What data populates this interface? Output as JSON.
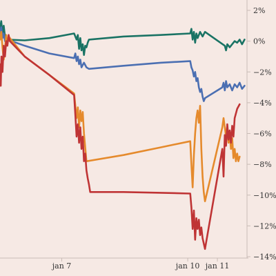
{
  "chart_data": {
    "type": "line",
    "title": "",
    "xlabel": "",
    "ylabel": "",
    "y_unit": "%",
    "y_axis_side": "right",
    "ylim": [
      -14,
      2
    ],
    "yticks": [
      2,
      0,
      -2,
      -4,
      -6,
      -8,
      -10,
      -12,
      -14
    ],
    "ytick_labels": [
      "2%",
      "0%",
      "−2%",
      "−4%",
      "−6%",
      "−8%",
      "−10%",
      "−12%",
      "−14%"
    ],
    "xlim": [
      0,
      100
    ],
    "xticks": [
      {
        "x": 25,
        "label": "jan 7"
      },
      {
        "x": 76,
        "label": "jan 10"
      },
      {
        "x": 88,
        "label": "jan 11"
      }
    ],
    "grid": "none",
    "background": "#f6e9e4",
    "series": [
      {
        "color": "#1a7364",
        "points": [
          [
            0,
            0.8
          ],
          [
            0.5,
            1.3
          ],
          [
            1,
            0.5
          ],
          [
            1.5,
            1.0
          ],
          [
            2,
            0.3
          ],
          [
            3,
            0.1
          ],
          [
            10,
            0.05
          ],
          [
            20,
            0.2
          ],
          [
            30,
            0.5
          ],
          [
            31,
            0.1
          ],
          [
            31.5,
            0.4
          ],
          [
            32,
            -0.5
          ],
          [
            32.5,
            0.2
          ],
          [
            33,
            -0.6
          ],
          [
            33.5,
            -0.2
          ],
          [
            34,
            -0.9
          ],
          [
            34.5,
            -0.3
          ],
          [
            35,
            -0.4
          ],
          [
            35.5,
            -0.1
          ],
          [
            36,
            0.1
          ],
          [
            50,
            0.3
          ],
          [
            65,
            0.4
          ],
          [
            77,
            0.5
          ],
          [
            77.5,
            0.8
          ],
          [
            78,
            0.1
          ],
          [
            78.5,
            0.6
          ],
          [
            79,
            -0.1
          ],
          [
            79.5,
            0.5
          ],
          [
            80,
            0.2
          ],
          [
            81,
            0.6
          ],
          [
            82,
            0.3
          ],
          [
            83,
            0.6
          ],
          [
            91,
            -0.3
          ],
          [
            91.5,
            -0.6
          ],
          [
            92,
            -0.2
          ],
          [
            93,
            -0.4
          ],
          [
            94,
            -0.2
          ],
          [
            95,
            0.0
          ],
          [
            96,
            -0.1
          ],
          [
            97,
            0.1
          ],
          [
            98,
            -0.2
          ],
          [
            99,
            0.1
          ]
        ]
      },
      {
        "color": "#4b6fb2",
        "points": [
          [
            0,
            0.4
          ],
          [
            0.5,
            0.9
          ],
          [
            1,
            0.2
          ],
          [
            1.5,
            0.5
          ],
          [
            2,
            0.0
          ],
          [
            3,
            0.1
          ],
          [
            10,
            -0.3
          ],
          [
            20,
            -0.8
          ],
          [
            30,
            -1.1
          ],
          [
            30.5,
            -0.8
          ],
          [
            31,
            -1.3
          ],
          [
            31.5,
            -1.0
          ],
          [
            32,
            -1.5
          ],
          [
            32.5,
            -1.2
          ],
          [
            33,
            -1.7
          ],
          [
            34,
            -1.4
          ],
          [
            35,
            -1.7
          ],
          [
            36,
            -1.8
          ],
          [
            50,
            -1.6
          ],
          [
            65,
            -1.4
          ],
          [
            77,
            -1.3
          ],
          [
            77.5,
            -1.7
          ],
          [
            78,
            -1.9
          ],
          [
            78.5,
            -2.3
          ],
          [
            79,
            -2.0
          ],
          [
            79.5,
            -2.6
          ],
          [
            80,
            -2.4
          ],
          [
            80.5,
            -3.0
          ],
          [
            81,
            -3.3
          ],
          [
            81.5,
            -3.1
          ],
          [
            82,
            -3.6
          ],
          [
            82.5,
            -3.9
          ],
          [
            83,
            -3.7
          ],
          [
            90,
            -3.0
          ],
          [
            90.5,
            -2.7
          ],
          [
            91,
            -3.2
          ],
          [
            91.5,
            -2.6
          ],
          [
            92,
            -3.0
          ],
          [
            93,
            -2.8
          ],
          [
            94,
            -3.2
          ],
          [
            95,
            -2.8
          ],
          [
            96,
            -3.0
          ],
          [
            97,
            -2.7
          ],
          [
            98,
            -3.1
          ],
          [
            99,
            -2.9
          ]
        ]
      },
      {
        "color": "#e58a2c",
        "points": [
          [
            0,
            0.1
          ],
          [
            0.5,
            0.6
          ],
          [
            1,
            -0.4
          ],
          [
            1.5,
            -1.2
          ],
          [
            2,
            -0.5
          ],
          [
            2.5,
            0.4
          ],
          [
            3,
            -0.2
          ],
          [
            3.5,
            0.3
          ],
          [
            4,
            0.2
          ],
          [
            10,
            -1.0
          ],
          [
            20,
            -2.2
          ],
          [
            30,
            -3.4
          ],
          [
            30.5,
            -4.2
          ],
          [
            31,
            -5.0
          ],
          [
            31.5,
            -4.3
          ],
          [
            32,
            -5.6
          ],
          [
            32.5,
            -4.5
          ],
          [
            33,
            -5.2
          ],
          [
            33.5,
            -4.6
          ],
          [
            34,
            -6.0
          ],
          [
            35,
            -7.8
          ],
          [
            50,
            -7.4
          ],
          [
            65,
            -6.9
          ],
          [
            77,
            -6.5
          ],
          [
            77.5,
            -8.0
          ],
          [
            78,
            -9.5
          ],
          [
            78.5,
            -7.4
          ],
          [
            79,
            -6.0
          ],
          [
            79.5,
            -5.0
          ],
          [
            80,
            -4.5
          ],
          [
            80.5,
            -5.3
          ],
          [
            81,
            -4.2
          ],
          [
            81.5,
            -7.0
          ],
          [
            82,
            -8.8
          ],
          [
            82.5,
            -9.8
          ],
          [
            83,
            -10.4
          ],
          [
            90,
            -5.6
          ],
          [
            90.5,
            -5.0
          ],
          [
            91,
            -5.6
          ],
          [
            91.5,
            -6.2
          ],
          [
            92,
            -5.5
          ],
          [
            92.5,
            -6.6
          ],
          [
            93,
            -6.0
          ],
          [
            93.5,
            -7.0
          ],
          [
            94,
            -6.3
          ],
          [
            94.5,
            -7.6
          ],
          [
            95,
            -7.0
          ],
          [
            95.5,
            -7.8
          ],
          [
            96,
            -7.3
          ],
          [
            96.5,
            -7.8
          ],
          [
            97,
            -7.5
          ]
        ]
      },
      {
        "color": "#bf3435",
        "points": [
          [
            0,
            -1.5
          ],
          [
            0.3,
            -2.9
          ],
          [
            0.6,
            -1.0
          ],
          [
            1,
            -2.0
          ],
          [
            1.5,
            -0.3
          ],
          [
            2,
            -1.0
          ],
          [
            2.5,
            0.0
          ],
          [
            3,
            -0.3
          ],
          [
            3.5,
            0.4
          ],
          [
            4,
            0.0
          ],
          [
            10,
            -1.0
          ],
          [
            20,
            -2.2
          ],
          [
            30,
            -3.5
          ],
          [
            30.5,
            -4.8
          ],
          [
            31,
            -6.2
          ],
          [
            31.5,
            -5.4
          ],
          [
            32,
            -6.6
          ],
          [
            32.5,
            -5.6
          ],
          [
            33,
            -7.0
          ],
          [
            33.5,
            -6.2
          ],
          [
            34,
            -7.8
          ],
          [
            34.5,
            -7.3
          ],
          [
            35,
            -8.4
          ],
          [
            35.5,
            -8.9
          ],
          [
            36,
            -9.3
          ],
          [
            36.5,
            -9.8
          ],
          [
            50,
            -9.8
          ],
          [
            65,
            -9.85
          ],
          [
            77,
            -9.9
          ],
          [
            77.5,
            -10.8
          ],
          [
            78,
            -12.2
          ],
          [
            78.5,
            -11.0
          ],
          [
            79,
            -12.9
          ],
          [
            79.5,
            -11.5
          ],
          [
            80,
            -12.2
          ],
          [
            80.5,
            -11.6
          ],
          [
            81,
            -12.6
          ],
          [
            81.5,
            -12.1
          ],
          [
            82,
            -12.8
          ],
          [
            83,
            -13.5
          ],
          [
            90,
            -7.0
          ],
          [
            90.5,
            -8.8
          ],
          [
            91,
            -6.1
          ],
          [
            91.5,
            -6.8
          ],
          [
            92,
            -5.4
          ],
          [
            92.5,
            -6.4
          ],
          [
            93,
            -5.8
          ],
          [
            93.5,
            -6.6
          ],
          [
            94,
            -5.5
          ],
          [
            94.5,
            -6.2
          ],
          [
            95,
            -5.0
          ],
          [
            96,
            -4.4
          ],
          [
            97,
            -4.1
          ]
        ]
      }
    ]
  }
}
